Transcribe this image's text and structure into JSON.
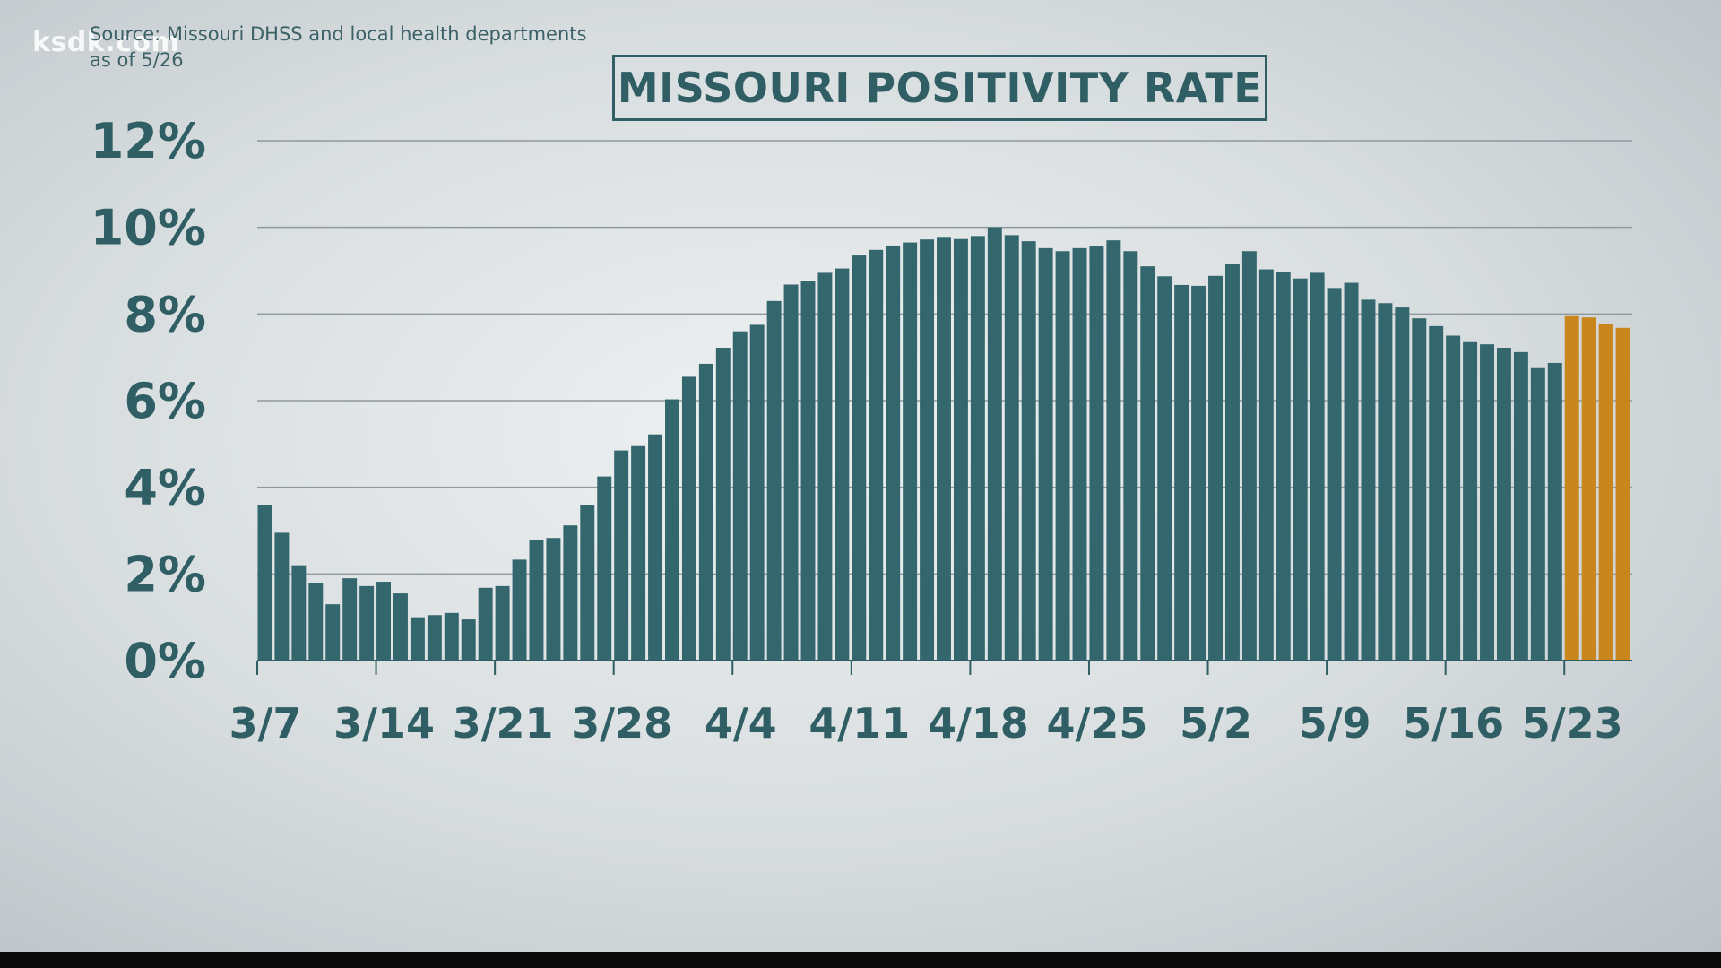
{
  "watermark": "ksdk.com",
  "source": {
    "line1": "Source: Missouri DHSS and local health departments",
    "line2": "as of 5/26"
  },
  "chart_data": {
    "type": "bar",
    "title": "MISSOURI POSITIVITY RATE",
    "ylim": [
      0,
      12
    ],
    "yticks": [
      0,
      2,
      4,
      6,
      8,
      10,
      12
    ],
    "ytick_labels": [
      "0%",
      "2%",
      "4%",
      "6%",
      "8%",
      "10%",
      "12%"
    ],
    "grid": true,
    "xtick_labels": [
      "3/7",
      "3/14",
      "3/21",
      "3/28",
      "4/4",
      "4/11",
      "4/18",
      "4/25",
      "5/2",
      "5/9",
      "5/16",
      "5/23"
    ],
    "categories": [
      "3/7",
      "3/8",
      "3/9",
      "3/10",
      "3/11",
      "3/12",
      "3/13",
      "3/14",
      "3/15",
      "3/16",
      "3/17",
      "3/18",
      "3/19",
      "3/20",
      "3/21",
      "3/22",
      "3/23",
      "3/24",
      "3/25",
      "3/26",
      "3/27",
      "3/28",
      "3/29",
      "3/30",
      "3/31",
      "4/1",
      "4/2",
      "4/3",
      "4/4",
      "4/5",
      "4/6",
      "4/7",
      "4/8",
      "4/9",
      "4/10",
      "4/11",
      "4/12",
      "4/13",
      "4/14",
      "4/15",
      "4/16",
      "4/17",
      "4/18",
      "4/19",
      "4/20",
      "4/21",
      "4/22",
      "4/23",
      "4/24",
      "4/25",
      "4/26",
      "4/27",
      "4/28",
      "4/29",
      "4/30",
      "5/1",
      "5/2",
      "5/3",
      "5/4",
      "5/5",
      "5/6",
      "5/7",
      "5/8",
      "5/9",
      "5/10",
      "5/11",
      "5/12",
      "5/13",
      "5/14",
      "5/15",
      "5/16",
      "5/17",
      "5/18",
      "5/19",
      "5/20",
      "5/21",
      "5/22",
      "5/23",
      "5/24",
      "5/25",
      "5/26"
    ],
    "values": [
      3.6,
      2.95,
      2.2,
      1.78,
      1.3,
      1.9,
      1.72,
      1.82,
      1.55,
      1.0,
      1.05,
      1.1,
      0.95,
      1.68,
      1.72,
      2.33,
      2.78,
      2.83,
      3.12,
      3.6,
      4.25,
      4.85,
      4.95,
      5.22,
      6.03,
      6.55,
      6.85,
      7.22,
      7.6,
      7.75,
      8.3,
      8.68,
      8.77,
      8.95,
      9.05,
      9.35,
      9.48,
      9.58,
      9.65,
      9.72,
      9.78,
      9.73,
      9.8,
      10.0,
      9.82,
      9.68,
      9.52,
      9.45,
      9.52,
      9.57,
      9.7,
      9.45,
      9.1,
      8.87,
      8.67,
      8.65,
      8.88,
      9.15,
      9.45,
      9.03,
      8.97,
      8.82,
      8.95,
      8.6,
      8.72,
      8.33,
      8.25,
      8.15,
      7.9,
      7.72,
      7.5,
      7.35,
      7.3,
      7.22,
      7.12,
      6.75,
      6.87,
      7.95,
      7.92,
      7.77,
      7.68
    ],
    "highlight_from_index": 77,
    "colors": {
      "bar": "#33666d",
      "highlight": "#c9861c",
      "text": "#2f5e64",
      "grid": "#8e9a9e",
      "axis": "#2f5e64"
    }
  }
}
